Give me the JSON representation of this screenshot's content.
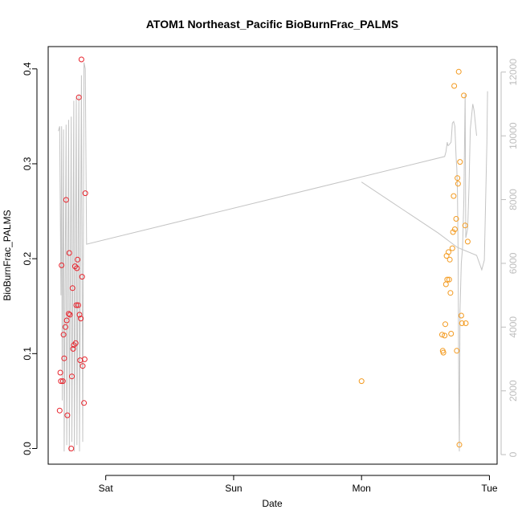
{
  "chart_data": {
    "type": "scatter",
    "title": "ATOM1 Northeast_Pacific BioBurnFrac_PALMS",
    "xlabel": "Date",
    "ylabel": "BioBurnFrac_PALMS",
    "x_unit": "days (0 = Sat 00:00)",
    "x_ticks": [
      {
        "value": 0,
        "label": "Sat"
      },
      {
        "value": 1,
        "label": "Sun"
      },
      {
        "value": 2,
        "label": "Mon"
      },
      {
        "value": 3,
        "label": "Tue"
      }
    ],
    "xlim": [
      -0.45,
      3.06
    ],
    "ylim": [
      -0.0165,
      0.4235
    ],
    "y_ticks": [
      0.0,
      0.1,
      0.2,
      0.3,
      0.4
    ],
    "y_tick_labels": [
      "0.0",
      "0.1",
      "0.2",
      "0.3",
      "0.4"
    ],
    "y2lim": [
      -300,
      12800
    ],
    "y2_ticks": [
      0,
      2000,
      4000,
      6000,
      8000,
      10000,
      12000
    ],
    "y2_tick_labels": [
      "0",
      "2000",
      "4000",
      "6000",
      "8000",
      "10000",
      "12000"
    ],
    "colors": {
      "series1": "#e8232c",
      "series2": "#f39a1f",
      "line": "#c4c4c4"
    },
    "series": [
      {
        "color": "#e8232c",
        "points": [
          [
            -0.36,
            0.04
          ],
          [
            -0.355,
            0.08
          ],
          [
            -0.35,
            0.071
          ],
          [
            -0.335,
            0.071
          ],
          [
            -0.345,
            0.193
          ],
          [
            -0.33,
            0.12
          ],
          [
            -0.325,
            0.095
          ],
          [
            -0.315,
            0.128
          ],
          [
            -0.31,
            0.262
          ],
          [
            -0.305,
            0.135
          ],
          [
            -0.3,
            0.035
          ],
          [
            -0.29,
            0.142
          ],
          [
            -0.285,
            0.206
          ],
          [
            -0.28,
            0.141
          ],
          [
            -0.27,
            0.0
          ],
          [
            -0.265,
            0.076
          ],
          [
            -0.26,
            0.169
          ],
          [
            -0.255,
            0.105
          ],
          [
            -0.25,
            0.109
          ],
          [
            -0.24,
            0.192
          ],
          [
            -0.235,
            0.111
          ],
          [
            -0.23,
            0.151
          ],
          [
            -0.225,
            0.19
          ],
          [
            -0.22,
            0.199
          ],
          [
            -0.215,
            0.151
          ],
          [
            -0.21,
            0.37
          ],
          [
            -0.205,
            0.141
          ],
          [
            -0.2,
            0.093
          ],
          [
            -0.195,
            0.137
          ],
          [
            -0.19,
            0.41
          ],
          [
            -0.185,
            0.181
          ],
          [
            -0.18,
            0.087
          ],
          [
            -0.17,
            0.048
          ],
          [
            -0.165,
            0.094
          ],
          [
            -0.16,
            0.269
          ]
        ]
      },
      {
        "color": "#f39a1f",
        "points": [
          [
            2.0,
            0.071
          ],
          [
            2.63,
            0.12
          ],
          [
            2.635,
            0.103
          ],
          [
            2.64,
            0.101
          ],
          [
            2.65,
            0.119
          ],
          [
            2.655,
            0.131
          ],
          [
            2.66,
            0.173
          ],
          [
            2.665,
            0.203
          ],
          [
            2.67,
            0.178
          ],
          [
            2.68,
            0.207
          ],
          [
            2.685,
            0.178
          ],
          [
            2.69,
            0.199
          ],
          [
            2.695,
            0.164
          ],
          [
            2.7,
            0.121
          ],
          [
            2.71,
            0.211
          ],
          [
            2.715,
            0.228
          ],
          [
            2.72,
            0.266
          ],
          [
            2.725,
            0.382
          ],
          [
            2.73,
            0.231
          ],
          [
            2.74,
            0.242
          ],
          [
            2.745,
            0.103
          ],
          [
            2.75,
            0.285
          ],
          [
            2.755,
            0.279
          ],
          [
            2.76,
            0.397
          ],
          [
            2.765,
            0.004
          ],
          [
            2.77,
            0.302
          ],
          [
            2.78,
            0.14
          ],
          [
            2.785,
            0.132
          ],
          [
            2.8,
            0.372
          ],
          [
            2.81,
            0.235
          ],
          [
            2.815,
            0.132
          ],
          [
            2.83,
            0.218
          ]
        ]
      }
    ],
    "line_series": [
      {
        "axis": "right",
        "color": "#c4c4c4",
        "segments": [
          [
            [
              -0.37,
              10150
            ],
            [
              -0.36,
              10300
            ],
            [
              -0.35,
              5000
            ],
            [
              -0.345,
              10300
            ],
            [
              -0.34,
              1700
            ],
            [
              -0.33,
              10200
            ],
            [
              -0.325,
              100
            ],
            [
              -0.31,
              10350
            ],
            [
              -0.305,
              300
            ],
            [
              -0.29,
              10500
            ],
            [
              -0.285,
              100
            ],
            [
              -0.27,
              10600
            ],
            [
              -0.265,
              400
            ],
            [
              -0.25,
              11100
            ],
            [
              -0.245,
              100
            ],
            [
              -0.23,
              11200
            ],
            [
              -0.225,
              300
            ],
            [
              -0.21,
              11300
            ],
            [
              -0.205,
              100
            ],
            [
              -0.19,
              11900
            ],
            [
              -0.18,
              400
            ],
            [
              -0.17,
              12300
            ],
            [
              -0.16,
              12100
            ],
            [
              -0.15,
              6600
            ],
            [
              2.65,
              9350
            ],
            [
              2.66,
              9500
            ],
            [
              2.67,
              9800
            ],
            [
              2.675,
              9700
            ],
            [
              2.68,
              9700
            ],
            [
              2.69,
              9750
            ],
            [
              2.7,
              9800
            ],
            [
              2.71,
              10400
            ],
            [
              2.72,
              10450
            ],
            [
              2.73,
              10300
            ],
            [
              2.74,
              9300
            ],
            [
              2.745,
              9000
            ],
            [
              2.75,
              8300
            ],
            [
              2.755,
              6400
            ],
            [
              2.76,
              2500
            ],
            [
              2.765,
              100
            ],
            [
              2.77,
              4500
            ],
            [
              2.78,
              6000
            ],
            [
              2.79,
              6500
            ],
            [
              2.8,
              8000
            ],
            [
              2.81,
              11300
            ],
            [
              2.815,
              6800
            ],
            [
              2.82,
              6900
            ],
            [
              2.83,
              7100
            ],
            [
              2.84,
              8400
            ],
            [
              2.85,
              10200
            ],
            [
              2.87,
              11000
            ],
            [
              2.88,
              10800
            ],
            [
              2.9,
              10000
            ]
          ],
          [
            [
              2.0,
              8550
            ],
            [
              2.3,
              7750
            ],
            [
              2.6,
              6950
            ],
            [
              2.75,
              6500
            ],
            [
              2.9,
              6250
            ],
            [
              2.94,
              5800
            ],
            [
              2.96,
              6100
            ],
            [
              2.98,
              9800
            ],
            [
              2.985,
              11400
            ]
          ]
        ]
      }
    ]
  }
}
